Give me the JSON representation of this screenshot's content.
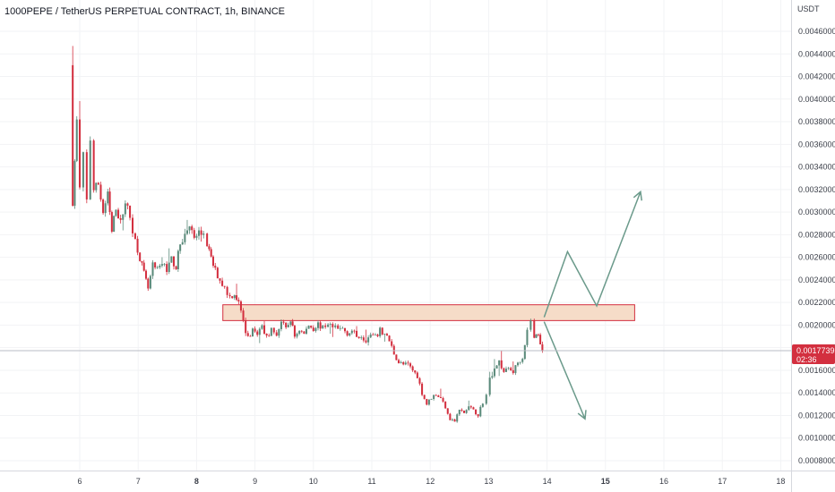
{
  "header": {
    "title": "1000PEPE / TetherUS PERPETUAL CONTRACT, 1h, BINANCE"
  },
  "colors": {
    "up": "#5a8a7a",
    "down": "#d32f3f",
    "zone_fill": "#f6dcc8",
    "zone_border": "#d32f3f",
    "projection": "#6b9a8b",
    "price_badge": "#d32f3f",
    "background": "#ffffff",
    "axis_bg": "#eef0f4"
  },
  "chart_data": {
    "type": "candlestick",
    "symbol": "1000PEPE / TetherUS PERPETUAL CONTRACT",
    "interval": "1h",
    "exchange": "BINANCE",
    "y_unit": "USDT",
    "ylim": [
      0.00078,
      0.0047
    ],
    "y_ticks": [
      "0.0008000",
      "0.0010000",
      "0.0012000",
      "0.0014000",
      "0.0016000",
      "0.0018000",
      "0.0020000",
      "0.0022000",
      "0.0024000",
      "0.0026000",
      "0.0028000",
      "0.0030000",
      "0.0032000",
      "0.0034000",
      "0.0036000",
      "0.0038000",
      "0.0040000",
      "0.0042000",
      "0.0044000",
      "0.0046000"
    ],
    "y_tick_values": [
      0.0008,
      0.001,
      0.0012,
      0.0014,
      0.0016,
      0.0018,
      0.002,
      0.0022,
      0.0024,
      0.0026,
      0.0028,
      0.003,
      0.0032,
      0.0034,
      0.0036,
      0.0038,
      0.004,
      0.0042,
      0.0044,
      0.0046
    ],
    "x_ticks": [
      {
        "label": "6",
        "day": 6,
        "bold": false
      },
      {
        "label": "7",
        "day": 7,
        "bold": false
      },
      {
        "label": "8",
        "day": 8,
        "bold": true
      },
      {
        "label": "9",
        "day": 9,
        "bold": false
      },
      {
        "label": "10",
        "day": 10,
        "bold": false
      },
      {
        "label": "11",
        "day": 11,
        "bold": false
      },
      {
        "label": "12",
        "day": 12,
        "bold": false
      },
      {
        "label": "13",
        "day": 13,
        "bold": false
      },
      {
        "label": "14",
        "day": 14,
        "bold": false
      },
      {
        "label": "15",
        "day": 15,
        "bold": true
      },
      {
        "label": "16",
        "day": 16,
        "bold": false
      },
      {
        "label": "17",
        "day": 17,
        "bold": false
      },
      {
        "label": "18",
        "day": 18,
        "bold": false
      }
    ],
    "xlim": [
      4.65,
      19.5
    ],
    "last_price": {
      "value": 0.0017739,
      "label": "0.0017739",
      "countdown": "02:36"
    },
    "resistance_zone": {
      "from_day": 8.45,
      "to_day": 15.5,
      "low": 0.00204,
      "high": 0.00218
    },
    "projections": [
      {
        "name": "bullish",
        "points": [
          [
            13.95,
            0.00207
          ],
          [
            14.35,
            0.00265
          ],
          [
            14.85,
            0.00217
          ],
          [
            15.6,
            0.00318
          ]
        ]
      },
      {
        "name": "bearish",
        "points": [
          [
            13.95,
            0.00203
          ],
          [
            14.65,
            0.00117
          ]
        ]
      }
    ],
    "path": [
      [
        5.83,
        0.0043
      ],
      [
        5.88,
        0.0031
      ],
      [
        5.95,
        0.0038
      ],
      [
        6.0,
        0.0032
      ],
      [
        6.06,
        0.0035
      ],
      [
        6.12,
        0.0031
      ],
      [
        6.18,
        0.00365
      ],
      [
        6.24,
        0.0032
      ],
      [
        6.32,
        0.00325
      ],
      [
        6.4,
        0.003
      ],
      [
        6.48,
        0.00315
      ],
      [
        6.55,
        0.00282
      ],
      [
        6.62,
        0.00305
      ],
      [
        6.7,
        0.0029
      ],
      [
        6.78,
        0.0031
      ],
      [
        6.86,
        0.00295
      ],
      [
        6.95,
        0.00275
      ],
      [
        7.03,
        0.0026
      ],
      [
        7.1,
        0.00245
      ],
      [
        7.17,
        0.00232
      ],
      [
        7.25,
        0.00252
      ],
      [
        7.33,
        0.00248
      ],
      [
        7.41,
        0.00255
      ],
      [
        7.49,
        0.0025
      ],
      [
        7.57,
        0.00258
      ],
      [
        7.65,
        0.00252
      ],
      [
        7.72,
        0.00272
      ],
      [
        7.8,
        0.0028
      ],
      [
        7.88,
        0.00288
      ],
      [
        7.96,
        0.00276
      ],
      [
        8.04,
        0.00282
      ],
      [
        8.12,
        0.00278
      ],
      [
        8.18,
        0.00272
      ],
      [
        8.25,
        0.00258
      ],
      [
        8.32,
        0.00248
      ],
      [
        8.4,
        0.0024
      ],
      [
        8.48,
        0.00233
      ],
      [
        8.57,
        0.00225
      ],
      [
        8.65,
        0.00228
      ],
      [
        8.72,
        0.0022
      ],
      [
        8.8,
        0.00202
      ],
      [
        8.88,
        0.00188
      ],
      [
        8.96,
        0.00197
      ],
      [
        9.04,
        0.00192
      ],
      [
        9.12,
        0.00199
      ],
      [
        9.2,
        0.0019
      ],
      [
        9.28,
        0.00196
      ],
      [
        9.37,
        0.00192
      ],
      [
        9.45,
        0.00203
      ],
      [
        9.53,
        0.00196
      ],
      [
        9.61,
        0.00205
      ],
      [
        9.68,
        0.0019
      ],
      [
        9.76,
        0.00196
      ],
      [
        9.84,
        0.00192
      ],
      [
        9.92,
        0.002
      ],
      [
        10.0,
        0.00197
      ],
      [
        10.08,
        0.00201
      ],
      [
        10.16,
        0.00197
      ],
      [
        10.25,
        0.00202
      ],
      [
        10.33,
        0.00198
      ],
      [
        10.42,
        0.00196
      ],
      [
        10.5,
        0.00197
      ],
      [
        10.58,
        0.00193
      ],
      [
        10.66,
        0.00195
      ],
      [
        10.74,
        0.0019
      ],
      [
        10.82,
        0.00191
      ],
      [
        10.9,
        0.00187
      ],
      [
        10.98,
        0.00191
      ],
      [
        11.06,
        0.00189
      ],
      [
        11.14,
        0.00195
      ],
      [
        11.22,
        0.00192
      ],
      [
        11.3,
        0.00186
      ],
      [
        11.38,
        0.00175
      ],
      [
        11.46,
        0.00167
      ],
      [
        11.54,
        0.00165
      ],
      [
        11.62,
        0.00165
      ],
      [
        11.7,
        0.0016
      ],
      [
        11.78,
        0.00155
      ],
      [
        11.86,
        0.0014
      ],
      [
        11.94,
        0.0013
      ],
      [
        12.02,
        0.00136
      ],
      [
        12.1,
        0.00139
      ],
      [
        12.18,
        0.00135
      ],
      [
        12.26,
        0.00128
      ],
      [
        12.34,
        0.00117
      ],
      [
        12.42,
        0.00115
      ],
      [
        12.5,
        0.00125
      ],
      [
        12.58,
        0.00122
      ],
      [
        12.66,
        0.00128
      ],
      [
        12.74,
        0.00124
      ],
      [
        12.82,
        0.00121
      ],
      [
        12.9,
        0.00132
      ],
      [
        12.96,
        0.00138
      ],
      [
        13.02,
        0.00152
      ],
      [
        13.1,
        0.00162
      ],
      [
        13.18,
        0.00168
      ],
      [
        13.26,
        0.00158
      ],
      [
        13.34,
        0.00162
      ],
      [
        13.42,
        0.00159
      ],
      [
        13.5,
        0.00167
      ],
      [
        13.58,
        0.00172
      ],
      [
        13.66,
        0.00195
      ],
      [
        13.72,
        0.00205
      ],
      [
        13.78,
        0.00188
      ],
      [
        13.85,
        0.00193
      ],
      [
        13.92,
        0.00177
      ]
    ]
  }
}
